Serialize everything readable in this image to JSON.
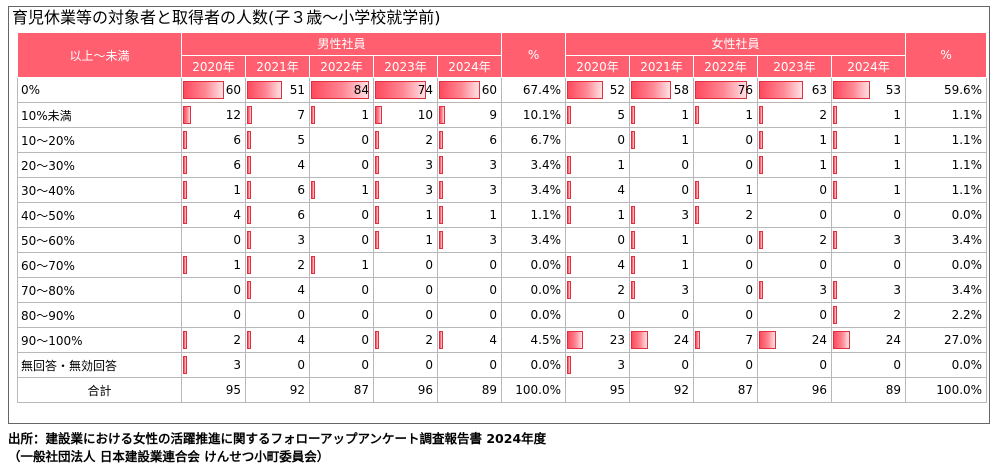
{
  "title": "育児休業等の対象者と取得者の人数(子３歳～小学校就学前)",
  "header": {
    "row_label": "以上～未満",
    "male_group": "男性社員",
    "female_group": "女性社員",
    "pct_label": "%",
    "years": [
      "2020年",
      "2021年",
      "2022年",
      "2023年",
      "2024年"
    ]
  },
  "colors": {
    "header_bg": "#ff5f6f",
    "bar": "#ff4a5e"
  },
  "bar_max": 84,
  "rows": [
    {
      "label": "0%",
      "male": [
        60,
        51,
        84,
        74,
        60
      ],
      "male_pct": "67.4%",
      "female": [
        52,
        58,
        76,
        63,
        53
      ],
      "female_pct": "59.6%"
    },
    {
      "label": "10%未満",
      "male": [
        12,
        7,
        1,
        10,
        9
      ],
      "male_pct": "10.1%",
      "female": [
        5,
        1,
        1,
        2,
        1
      ],
      "female_pct": "1.1%"
    },
    {
      "label": "10～20%",
      "male": [
        6,
        5,
        0,
        2,
        6
      ],
      "male_pct": "6.7%",
      "female": [
        0,
        1,
        0,
        1,
        1
      ],
      "female_pct": "1.1%"
    },
    {
      "label": "20～30%",
      "male": [
        6,
        4,
        0,
        3,
        3
      ],
      "male_pct": "3.4%",
      "female": [
        1,
        0,
        0,
        1,
        1
      ],
      "female_pct": "1.1%"
    },
    {
      "label": "30～40%",
      "male": [
        1,
        6,
        1,
        3,
        3
      ],
      "male_pct": "3.4%",
      "female": [
        4,
        0,
        1,
        0,
        1
      ],
      "female_pct": "1.1%"
    },
    {
      "label": "40～50%",
      "male": [
        4,
        6,
        0,
        1,
        1
      ],
      "male_pct": "1.1%",
      "female": [
        1,
        3,
        2,
        0,
        0
      ],
      "female_pct": "0.0%"
    },
    {
      "label": "50～60%",
      "male": [
        0,
        3,
        0,
        1,
        3
      ],
      "male_pct": "3.4%",
      "female": [
        0,
        1,
        0,
        2,
        3
      ],
      "female_pct": "3.4%"
    },
    {
      "label": "60～70%",
      "male": [
        1,
        2,
        1,
        0,
        0
      ],
      "male_pct": "0.0%",
      "female": [
        4,
        1,
        0,
        0,
        0
      ],
      "female_pct": "0.0%"
    },
    {
      "label": "70～80%",
      "male": [
        0,
        4,
        0,
        0,
        0
      ],
      "male_pct": "0.0%",
      "female": [
        2,
        3,
        0,
        3,
        3
      ],
      "female_pct": "3.4%"
    },
    {
      "label": "80～90%",
      "male": [
        0,
        0,
        0,
        0,
        0
      ],
      "male_pct": "0.0%",
      "female": [
        0,
        0,
        0,
        0,
        2
      ],
      "female_pct": "2.2%"
    },
    {
      "label": "90～100%",
      "male": [
        2,
        4,
        0,
        2,
        4
      ],
      "male_pct": "4.5%",
      "female": [
        23,
        24,
        7,
        24,
        24
      ],
      "female_pct": "27.0%"
    },
    {
      "label": "無回答・無効回答",
      "male": [
        3,
        0,
        0,
        0,
        0
      ],
      "male_pct": "0.0%",
      "female": [
        3,
        0,
        0,
        0,
        0
      ],
      "female_pct": "0.0%"
    }
  ],
  "total": {
    "label": "合計",
    "male": [
      95,
      92,
      87,
      96,
      89
    ],
    "male_pct": "100.0%",
    "female": [
      95,
      92,
      87,
      96,
      89
    ],
    "female_pct": "100.0%"
  },
  "source_line1": "出所：建設業における女性の活躍推進に関するフォローアップアンケート調査報告書 2024年度",
  "source_line2": "（一般社団法人 日本建設業連合会 けんせつ小町委員会）"
}
